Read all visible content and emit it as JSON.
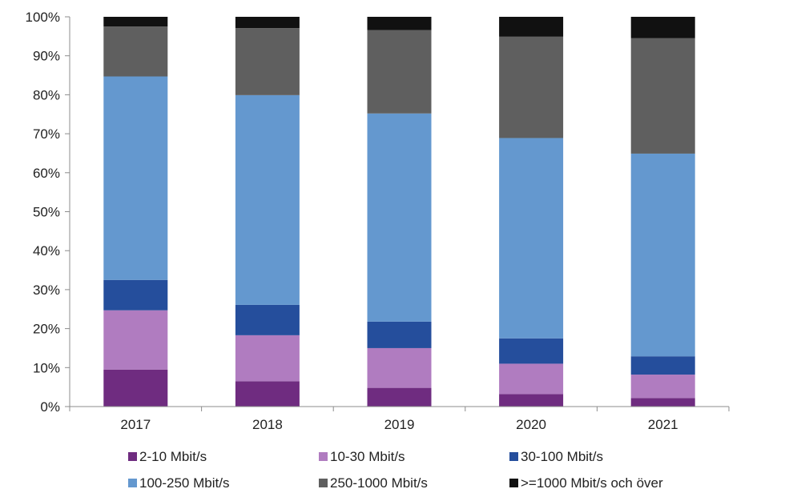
{
  "chart_data": {
    "type": "bar",
    "stacked": true,
    "percent": true,
    "title": "",
    "xlabel": "",
    "ylabel": "",
    "categories": [
      "2017",
      "2018",
      "2019",
      "2020",
      "2021"
    ],
    "ylim": [
      0,
      100
    ],
    "y_ticks": [
      0,
      10,
      20,
      30,
      40,
      50,
      60,
      70,
      80,
      90,
      100
    ],
    "y_tick_labels": [
      "0%",
      "10%",
      "20%",
      "30%",
      "40%",
      "50%",
      "60%",
      "70%",
      "80%",
      "90%",
      "100%"
    ],
    "grid": false,
    "legend_position": "bottom",
    "series": [
      {
        "name": "2-10 Mbit/s",
        "color": "#6f2c80",
        "values": [
          9.5,
          6.5,
          4.8,
          3.2,
          2.2
        ]
      },
      {
        "name": "10-30 Mbit/s",
        "color": "#b07cc0",
        "values": [
          15.2,
          11.8,
          10.2,
          7.8,
          6.0
        ]
      },
      {
        "name": "30-100 Mbit/s",
        "color": "#254e9c",
        "values": [
          7.8,
          7.8,
          6.8,
          6.5,
          4.7
        ]
      },
      {
        "name": "100-250 Mbit/s",
        "color": "#6498cf",
        "values": [
          52.2,
          53.8,
          53.4,
          51.4,
          52.0
        ]
      },
      {
        "name": "250-1000 Mbit/s",
        "color": "#5f5f5f",
        "values": [
          12.8,
          17.2,
          21.4,
          26.0,
          29.6
        ]
      },
      {
        "name": ">=1000 Mbit/s och över",
        "color": "#111111",
        "values": [
          2.5,
          2.9,
          3.4,
          5.1,
          5.5
        ]
      }
    ]
  }
}
